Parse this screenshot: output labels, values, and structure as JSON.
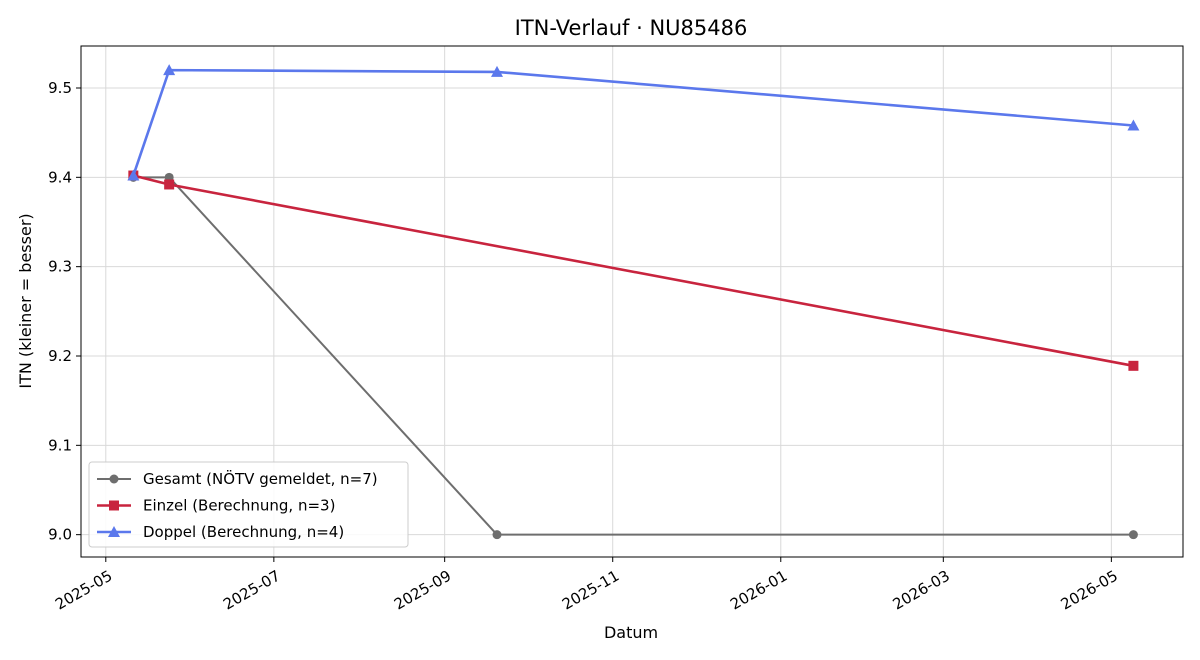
{
  "chart_data": {
    "type": "line",
    "title": "ITN-Verlauf · NU85486",
    "xlabel": "Datum",
    "ylabel": "ITN  (kleiner = besser)",
    "x_tick_labels": [
      "2025-05",
      "2025-07",
      "2025-09",
      "2025-11",
      "2026-01",
      "2026-03",
      "2026-05"
    ],
    "x_ticks": [
      "2025-05-01",
      "2025-07-01",
      "2025-09-01",
      "2025-11-01",
      "2026-01-01",
      "2026-03-01",
      "2026-05-01"
    ],
    "y_ticks": [
      9.0,
      9.1,
      9.2,
      9.3,
      9.4,
      9.5
    ],
    "y_tick_labels": [
      "9.0",
      "9.1",
      "9.2",
      "9.3",
      "9.4",
      "9.5"
    ],
    "xlim": [
      "2025-04-22",
      "2026-05-27"
    ],
    "ylim": [
      8.975,
      9.547
    ],
    "grid": true,
    "legend_position": "lower-left",
    "series": [
      {
        "name": "Gesamt (NÖTV gemeldet, n=7)",
        "color": "#6e6e6e",
        "marker": "circle",
        "points": [
          {
            "x": "2025-05-11",
            "y": 9.4
          },
          {
            "x": "2025-05-24",
            "y": 9.4
          },
          {
            "x": "2025-09-20",
            "y": 9.0
          },
          {
            "x": "2026-05-09",
            "y": 9.0
          }
        ]
      },
      {
        "name": "Einzel (Berechnung, n=3)",
        "color": "#c8243e",
        "marker": "square",
        "points": [
          {
            "x": "2025-05-11",
            "y": 9.402
          },
          {
            "x": "2025-05-24",
            "y": 9.392
          },
          {
            "x": "2026-05-09",
            "y": 9.189
          }
        ]
      },
      {
        "name": "Doppel (Berechnung, n=4)",
        "color": "#5b78ec",
        "marker": "triangle",
        "points": [
          {
            "x": "2025-05-11",
            "y": 9.402
          },
          {
            "x": "2025-05-24",
            "y": 9.52
          },
          {
            "x": "2025-09-20",
            "y": 9.518
          },
          {
            "x": "2026-05-09",
            "y": 9.458
          }
        ]
      }
    ]
  }
}
